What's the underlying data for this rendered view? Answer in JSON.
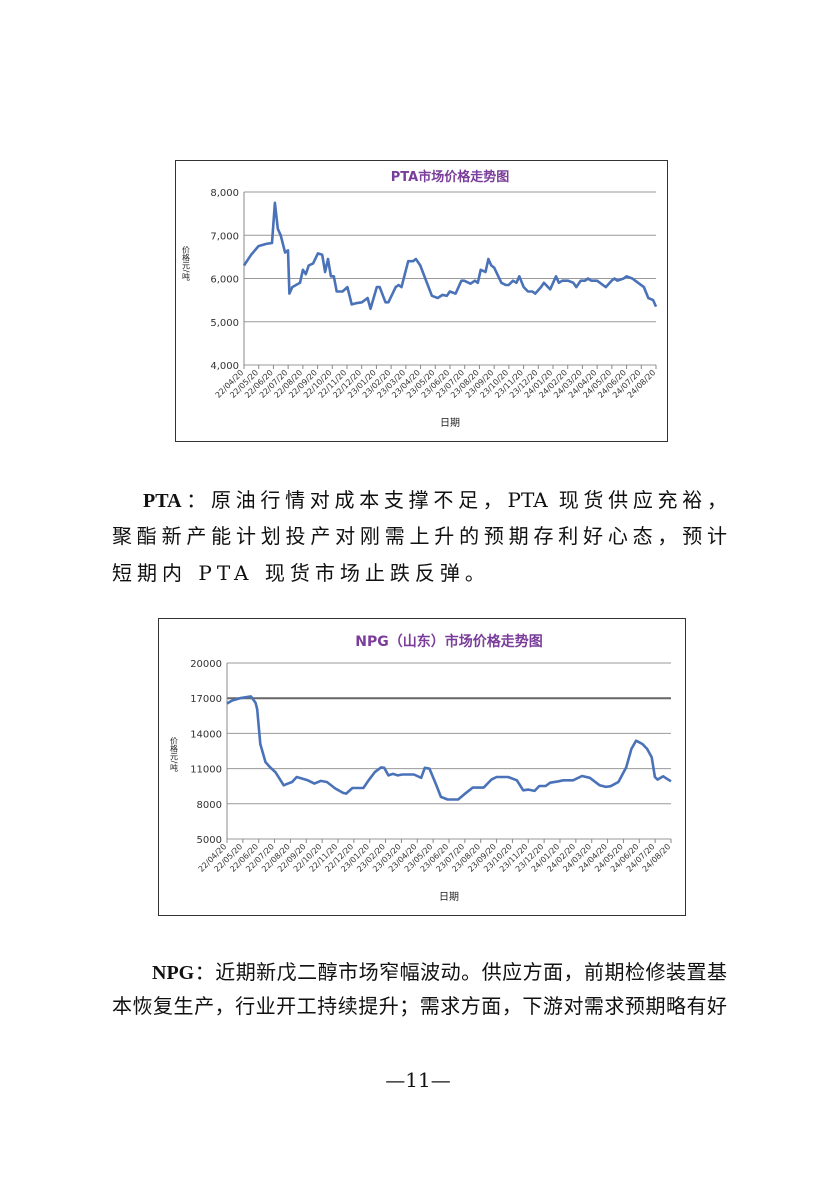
{
  "charts_text": {
    "pta_ylabel": "价格元/吨",
    "npg_ylabel": "价格元/吨"
  },
  "paragraphs": {
    "pta": {
      "lead": "PTA",
      "lines": [
        "：原油行情对成本支撑不足，PTA 现货供应充裕，",
        "聚酯新产能计划投产对刚需上升的预期存利好心态，预计",
        "短期内 PTA 现货市场止跌反弹。"
      ]
    },
    "npg": {
      "lead": "NPG",
      "lines": [
        "：近期新戊二醇市场窄幅波动。供应方面，前期检修装置基",
        "本恢复生产，行业开工持续提升；需求方面，下游对需求预期略有好"
      ]
    }
  },
  "footer": {
    "page_number": "—11—"
  },
  "colors": {
    "line": "#4a72b8",
    "title": "#7a3d9a",
    "grid": "#9a9a9a"
  },
  "chart_data": [
    {
      "type": "line",
      "title": "PTA市场价格走势图",
      "xlabel": "日期",
      "ylabel": "价格元/吨",
      "ylim": [
        4000,
        8000
      ],
      "yticks": [
        "4,000",
        "5,000",
        "6,000",
        "7,000",
        "8,000"
      ],
      "yticks_values": [
        4000,
        5000,
        6000,
        7000,
        8000
      ],
      "grid": true,
      "xticks": [
        "22/04/20",
        "22/05/20",
        "22/06/20",
        "22/07/20",
        "22/08/20",
        "22/09/20",
        "22/10/20",
        "22/11/20",
        "22/12/20",
        "23/01/20",
        "23/02/20",
        "23/03/20",
        "23/04/20",
        "23/05/20",
        "23/06/20",
        "23/07/20",
        "23/08/20",
        "23/09/20",
        "23/10/20",
        "23/11/20",
        "23/12/20",
        "24/01/20",
        "24/02/20",
        "24/03/20",
        "24/04/20",
        "24/05/20",
        "24/06/20",
        "24/07/20",
        "24/08/20"
      ],
      "series": [
        {
          "x": [
            "2022-04-20",
            "2022-05-05",
            "2022-05-20",
            "2022-06-05",
            "2022-06-17",
            "2022-06-23",
            "2022-06-29",
            "2022-07-05",
            "2022-07-14",
            "2022-07-20",
            "2022-07-23",
            "2022-07-29",
            "2022-08-14",
            "2022-08-20",
            "2022-08-26",
            "2022-09-01",
            "2022-09-10",
            "2022-09-20",
            "2022-09-29",
            "2022-10-05",
            "2022-10-11",
            "2022-10-17",
            "2022-10-23",
            "2022-10-29",
            "2022-11-10",
            "2022-11-20",
            "2022-11-29",
            "2022-12-08",
            "2022-12-20",
            "2023-01-01",
            "2023-01-07",
            "2023-01-20",
            "2023-01-26",
            "2023-02-07",
            "2023-02-13",
            "2023-02-28",
            "2023-03-06",
            "2023-03-12",
            "2023-03-26",
            "2023-04-05",
            "2023-04-11",
            "2023-04-20",
            "2023-05-02",
            "2023-05-14",
            "2023-05-26",
            "2023-06-05",
            "2023-06-14",
            "2023-06-20",
            "2023-07-02",
            "2023-07-14",
            "2023-07-20",
            "2023-08-02",
            "2023-08-11",
            "2023-08-17",
            "2023-08-23",
            "2023-09-02",
            "2023-09-08",
            "2023-09-14",
            "2023-09-20",
            "2023-10-05",
            "2023-10-14",
            "2023-10-20",
            "2023-10-29",
            "2023-11-05",
            "2023-11-11",
            "2023-11-20",
            "2023-11-29",
            "2023-12-08",
            "2023-12-14",
            "2023-12-26",
            "2024-01-01",
            "2024-01-14",
            "2024-01-20",
            "2024-01-26",
            "2024-02-01",
            "2024-02-08",
            "2024-02-20",
            "2024-03-02",
            "2024-03-08",
            "2024-03-17",
            "2024-03-26",
            "2024-04-01",
            "2024-04-08",
            "2024-04-20",
            "2024-05-02",
            "2024-05-08",
            "2024-05-20",
            "2024-05-26",
            "2024-06-01",
            "2024-06-14",
            "2024-06-20",
            "2024-07-02",
            "2024-07-14",
            "2024-07-26",
            "2024-08-04",
            "2024-08-14",
            "2024-08-20"
          ],
          "y": [
            6300,
            6550,
            6750,
            6800,
            6820,
            7750,
            7150,
            7000,
            6600,
            6650,
            5650,
            5800,
            5900,
            6200,
            6100,
            6300,
            6350,
            6580,
            6550,
            6150,
            6450,
            6050,
            6050,
            5700,
            5700,
            5800,
            5400,
            5430,
            5450,
            5550,
            5300,
            5800,
            5800,
            5450,
            5450,
            5800,
            5850,
            5800,
            6400,
            6400,
            6450,
            6300,
            5950,
            5600,
            5550,
            5620,
            5600,
            5700,
            5650,
            5950,
            5950,
            5880,
            5950,
            5900,
            6200,
            6150,
            6450,
            6300,
            6250,
            5900,
            5850,
            5850,
            5950,
            5900,
            6050,
            5800,
            5700,
            5700,
            5650,
            5800,
            5900,
            5750,
            5900,
            6050,
            5900,
            5950,
            5950,
            5900,
            5800,
            5950,
            5950,
            6000,
            5950,
            5950,
            5850,
            5800,
            5950,
            6000,
            5950,
            6000,
            6050,
            6000,
            5900,
            5800,
            5550,
            5500,
            5350
          ]
        }
      ]
    },
    {
      "type": "line",
      "title": "NPG（山东）市场价格走势图",
      "xlabel": "日期",
      "ylabel": "价格元/吨",
      "ylim": [
        5000,
        20000
      ],
      "yticks": [
        "5000",
        "8000",
        "11000",
        "14000",
        "17000",
        "20000"
      ],
      "yticks_values": [
        5000,
        8000,
        11000,
        14000,
        17000,
        20000
      ],
      "grid": true,
      "xticks": [
        "22/04/20",
        "22/05/20",
        "22/06/20",
        "22/07/20",
        "22/08/20",
        "22/09/20",
        "22/10/20",
        "22/11/20",
        "22/12/20",
        "23/01/20",
        "23/02/20",
        "23/03/20",
        "23/04/20",
        "23/05/20",
        "23/06/20",
        "23/07/20",
        "23/08/20",
        "23/09/20",
        "23/10/20",
        "23/11/20",
        "23/12/20",
        "24/01/20",
        "24/02/20",
        "24/03/20",
        "24/04/20",
        "24/05/20",
        "24/06/20",
        "24/07/20",
        "24/08/20"
      ],
      "series": [
        {
          "x": [
            "2022-04-20",
            "2022-04-30",
            "2022-05-15",
            "2022-06-05",
            "2022-06-14",
            "2022-06-17",
            "2022-06-23",
            "2022-07-03",
            "2022-07-12",
            "2022-07-22",
            "2022-08-07",
            "2022-08-15",
            "2022-08-23",
            "2022-09-01",
            "2022-09-22",
            "2022-10-05",
            "2022-10-17",
            "2022-10-29",
            "2022-11-14",
            "2022-11-29",
            "2022-12-05",
            "2022-12-17",
            "2023-01-07",
            "2023-01-17",
            "2023-01-29",
            "2023-02-10",
            "2023-02-16",
            "2023-02-24",
            "2023-03-05",
            "2023-03-14",
            "2023-03-23",
            "2023-04-14",
            "2023-04-28",
            "2023-05-05",
            "2023-05-14",
            "2023-05-26",
            "2023-06-05",
            "2023-06-18",
            "2023-07-08",
            "2023-07-20",
            "2023-08-05",
            "2023-08-26",
            "2023-09-10",
            "2023-09-20",
            "2023-10-12",
            "2023-10-29",
            "2023-11-10",
            "2023-11-20",
            "2023-12-02",
            "2023-12-11",
            "2023-12-23",
            "2024-01-01",
            "2024-01-17",
            "2024-01-26",
            "2024-02-14",
            "2024-03-02",
            "2024-03-17",
            "2024-04-05",
            "2024-04-17",
            "2024-04-26",
            "2024-05-11",
            "2024-05-26",
            "2024-06-05",
            "2024-06-14",
            "2024-06-26",
            "2024-07-05",
            "2024-07-14",
            "2024-07-20",
            "2024-07-25",
            "2024-08-05",
            "2024-08-12",
            "2024-08-20"
          ],
          "y": [
            16550,
            16800,
            17000,
            17150,
            16600,
            16050,
            13100,
            11550,
            11100,
            10700,
            9580,
            9720,
            9860,
            10280,
            10000,
            9720,
            9950,
            9860,
            9300,
            8930,
            8870,
            9350,
            9350,
            10000,
            10700,
            11100,
            11070,
            10420,
            10560,
            10420,
            10500,
            10500,
            10220,
            11070,
            10990,
            9720,
            8590,
            8370,
            8370,
            8820,
            9380,
            9380,
            10060,
            10280,
            10280,
            10000,
            9150,
            9210,
            9100,
            9520,
            9520,
            9800,
            9920,
            10000,
            10000,
            10370,
            10220,
            9580,
            9440,
            9500,
            9860,
            11100,
            12680,
            13380,
            13100,
            12680,
            11970,
            10280,
            10060,
            10340,
            10140,
            9920
          ]
        }
      ]
    }
  ]
}
